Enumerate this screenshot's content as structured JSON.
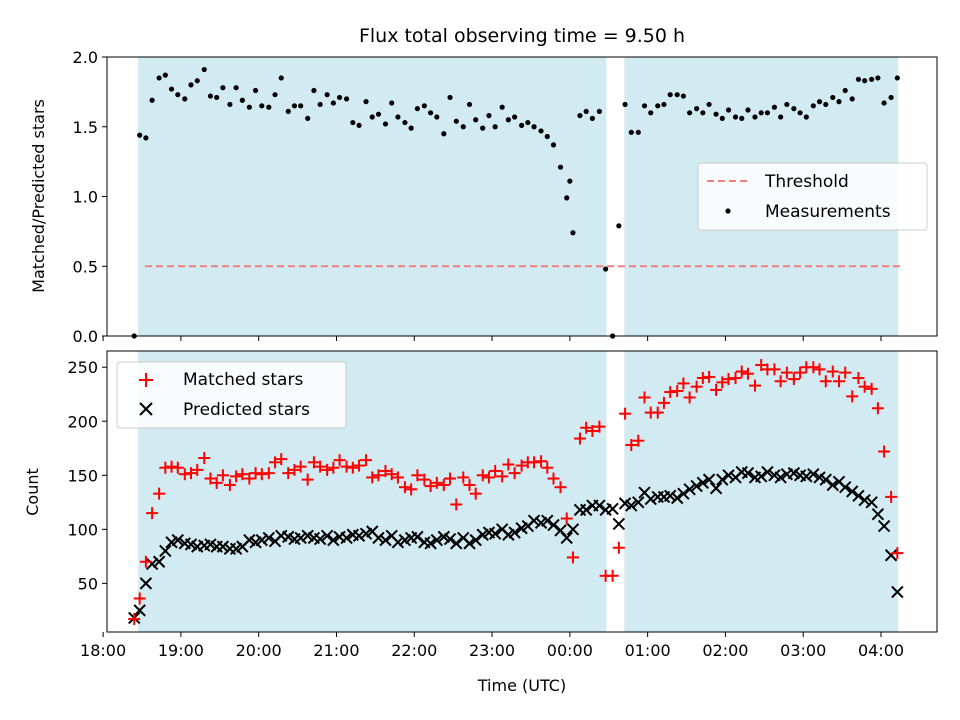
{
  "figure": {
    "title": "Flux total observing time = 9.50 h",
    "xlabel": "Time (UTC)"
  },
  "colors": {
    "shade": "#add8e6",
    "matched": "#ff0000",
    "predicted": "#000000",
    "threshold": "#f08080",
    "measurement": "#000000"
  },
  "chart_data": [
    {
      "type": "scatter",
      "panel": "top",
      "ylabel": "Matched/Predicted stars",
      "xlim": [
        18.05,
        4.72
      ],
      "ylim": [
        0.0,
        2.0
      ],
      "yticks": [
        0.0,
        0.5,
        1.0,
        1.5,
        2.0
      ],
      "ytick_labels": [
        "0.0",
        "0.5",
        "1.0",
        "1.5",
        "2.0"
      ],
      "threshold": 0.5,
      "legend": {
        "position": "center-right",
        "entries": [
          "Threshold",
          "Measurements"
        ]
      },
      "shaded_intervals": [
        [
          18.45,
          0.47
        ],
        [
          0.7,
          4.22
        ]
      ],
      "series": [
        {
          "name": "Measurements",
          "x": [
            18.4,
            18.47,
            18.55,
            18.63,
            18.72,
            18.8,
            18.88,
            18.96,
            19.05,
            19.13,
            19.21,
            19.3,
            19.38,
            19.46,
            19.54,
            19.63,
            19.71,
            19.79,
            19.88,
            19.96,
            20.04,
            20.13,
            20.21,
            20.29,
            20.38,
            20.46,
            20.54,
            20.63,
            20.71,
            20.79,
            20.88,
            20.96,
            21.04,
            21.13,
            21.21,
            21.29,
            21.38,
            21.46,
            21.54,
            21.63,
            21.71,
            21.79,
            21.88,
            21.96,
            22.04,
            22.13,
            22.21,
            22.29,
            22.38,
            22.46,
            22.54,
            22.63,
            22.71,
            22.79,
            22.88,
            22.96,
            23.04,
            23.13,
            23.21,
            23.29,
            23.38,
            23.46,
            23.54,
            23.63,
            23.71,
            23.79,
            23.88,
            23.96,
            24.0,
            24.04,
            24.13,
            24.21,
            24.29,
            24.38,
            24.46,
            24.55,
            24.63,
            24.71,
            24.79,
            24.88,
            24.96,
            25.04,
            25.13,
            25.21,
            25.29,
            25.38,
            25.46,
            25.54,
            25.63,
            25.71,
            25.79,
            25.88,
            25.96,
            26.04,
            26.13,
            26.21,
            26.29,
            26.38,
            26.46,
            26.54,
            26.63,
            26.71,
            26.79,
            26.88,
            26.96,
            27.04,
            27.13,
            27.21,
            27.29,
            27.38,
            27.46,
            27.54,
            27.63,
            27.71,
            27.79,
            27.88,
            27.96,
            28.04,
            28.13,
            28.21
          ],
          "y": [
            0.0,
            1.44,
            1.42,
            1.69,
            1.85,
            1.87,
            1.77,
            1.73,
            1.7,
            1.8,
            1.83,
            1.91,
            1.72,
            1.71,
            1.78,
            1.66,
            1.78,
            1.69,
            1.64,
            1.76,
            1.65,
            1.64,
            1.73,
            1.85,
            1.61,
            1.65,
            1.65,
            1.56,
            1.76,
            1.66,
            1.73,
            1.67,
            1.71,
            1.7,
            1.53,
            1.51,
            1.68,
            1.57,
            1.59,
            1.52,
            1.67,
            1.57,
            1.53,
            1.49,
            1.63,
            1.65,
            1.6,
            1.57,
            1.45,
            1.71,
            1.54,
            1.5,
            1.66,
            1.55,
            1.49,
            1.58,
            1.5,
            1.64,
            1.55,
            1.57,
            1.51,
            1.53,
            1.5,
            1.47,
            1.43,
            1.37,
            1.21,
            0.99,
            1.11,
            0.74,
            1.58,
            1.61,
            1.56,
            1.61,
            0.48,
            0.0,
            0.79,
            1.66,
            1.46,
            1.46,
            1.65,
            1.6,
            1.65,
            1.66,
            1.73,
            1.73,
            1.72,
            1.6,
            1.63,
            1.6,
            1.66,
            1.59,
            1.56,
            1.62,
            1.57,
            1.56,
            1.62,
            1.57,
            1.6,
            1.6,
            1.64,
            1.57,
            1.66,
            1.63,
            1.6,
            1.57,
            1.65,
            1.68,
            1.66,
            1.71,
            1.68,
            1.76,
            1.7,
            1.84,
            1.83,
            1.84,
            1.85,
            1.67,
            1.71,
            1.85
          ]
        }
      ]
    },
    {
      "type": "scatter",
      "panel": "bottom",
      "ylabel": "Count",
      "xlabel": "Time (UTC)",
      "xlim": [
        18.05,
        4.72
      ],
      "ylim": [
        5,
        265
      ],
      "yticks": [
        50,
        100,
        150,
        200,
        250
      ],
      "xticks": [
        "18:00",
        "19:00",
        "20:00",
        "21:00",
        "22:00",
        "23:00",
        "00:00",
        "01:00",
        "02:00",
        "03:00",
        "04:00"
      ],
      "legend": {
        "position": "top-left",
        "entries": [
          "Matched stars",
          "Predicted stars"
        ]
      },
      "shaded_intervals": [
        [
          18.45,
          0.47
        ],
        [
          0.7,
          4.22
        ]
      ],
      "x": [
        18.4,
        18.47,
        18.55,
        18.63,
        18.72,
        18.8,
        18.88,
        18.96,
        19.05,
        19.13,
        19.21,
        19.3,
        19.38,
        19.46,
        19.54,
        19.63,
        19.71,
        19.79,
        19.88,
        19.96,
        20.04,
        20.13,
        20.21,
        20.29,
        20.38,
        20.46,
        20.54,
        20.63,
        20.71,
        20.79,
        20.88,
        20.96,
        21.04,
        21.13,
        21.21,
        21.29,
        21.38,
        21.46,
        21.54,
        21.63,
        21.71,
        21.79,
        21.88,
        21.96,
        22.04,
        22.13,
        22.21,
        22.29,
        22.38,
        22.46,
        22.54,
        22.63,
        22.71,
        22.79,
        22.88,
        22.96,
        23.04,
        23.13,
        23.21,
        23.29,
        23.38,
        23.46,
        23.54,
        23.63,
        23.71,
        23.79,
        23.88,
        23.96,
        24.04,
        24.13,
        24.21,
        24.29,
        24.38,
        24.46,
        24.55,
        24.63,
        24.71,
        24.79,
        24.88,
        24.96,
        25.04,
        25.13,
        25.21,
        25.29,
        25.38,
        25.46,
        25.54,
        25.63,
        25.71,
        25.79,
        25.88,
        25.96,
        26.04,
        26.13,
        26.21,
        26.29,
        26.38,
        26.46,
        26.54,
        26.63,
        26.71,
        26.79,
        26.88,
        26.96,
        27.04,
        27.13,
        27.21,
        27.29,
        27.38,
        27.46,
        27.54,
        27.63,
        27.71,
        27.79,
        27.88,
        27.96,
        28.04,
        28.13,
        28.21
      ],
      "series": [
        {
          "name": "Matched stars",
          "marker": "+",
          "values": [
            17,
            36,
            70,
            115,
            133,
            157,
            158,
            157,
            151,
            152,
            155,
            166,
            147,
            143,
            150,
            141,
            149,
            151,
            147,
            152,
            151,
            152,
            162,
            165,
            152,
            155,
            158,
            146,
            162,
            158,
            155,
            157,
            164,
            158,
            157,
            159,
            164,
            148,
            150,
            154,
            151,
            148,
            139,
            137,
            150,
            146,
            140,
            143,
            141,
            147,
            123,
            148,
            141,
            133,
            150,
            148,
            154,
            149,
            160,
            152,
            159,
            162,
            162,
            163,
            157,
            147,
            139,
            110,
            74,
            184,
            194,
            191,
            195,
            57,
            57,
            83,
            207,
            178,
            182,
            222,
            208,
            208,
            217,
            227,
            228,
            235,
            222,
            232,
            240,
            241,
            229,
            236,
            239,
            240,
            246,
            244,
            233,
            252,
            248,
            248,
            237,
            245,
            239,
            245,
            250,
            250,
            248,
            237,
            246,
            237,
            245,
            223,
            240,
            232,
            230,
            212,
            172,
            130,
            78
          ]
        },
        {
          "name": "Predicted stars",
          "marker": "x",
          "values": [
            18,
            25,
            50,
            68,
            70,
            80,
            88,
            90,
            87,
            86,
            84,
            85,
            86,
            84,
            84,
            82,
            82,
            84,
            90,
            88,
            90,
            92,
            89,
            94,
            93,
            91,
            92,
            94,
            92,
            91,
            94,
            90,
            93,
            92,
            95,
            94,
            96,
            98,
            92,
            90,
            94,
            88,
            90,
            92,
            93,
            88,
            87,
            90,
            93,
            91,
            87,
            92,
            87,
            90,
            95,
            97,
            96,
            100,
            95,
            97,
            101,
            103,
            108,
            106,
            108,
            104,
            99,
            92,
            100,
            118,
            118,
            122,
            122,
            118,
            119,
            105,
            124,
            122,
            125,
            134,
            128,
            130,
            130,
            131,
            129,
            133,
            137,
            140,
            143,
            146,
            138,
            146,
            150,
            148,
            153,
            152,
            148,
            149,
            153,
            150,
            148,
            151,
            152,
            150,
            149,
            151,
            148,
            146,
            141,
            144,
            139,
            135,
            131,
            127,
            125,
            114,
            103,
            76,
            42
          ]
        }
      ]
    }
  ]
}
